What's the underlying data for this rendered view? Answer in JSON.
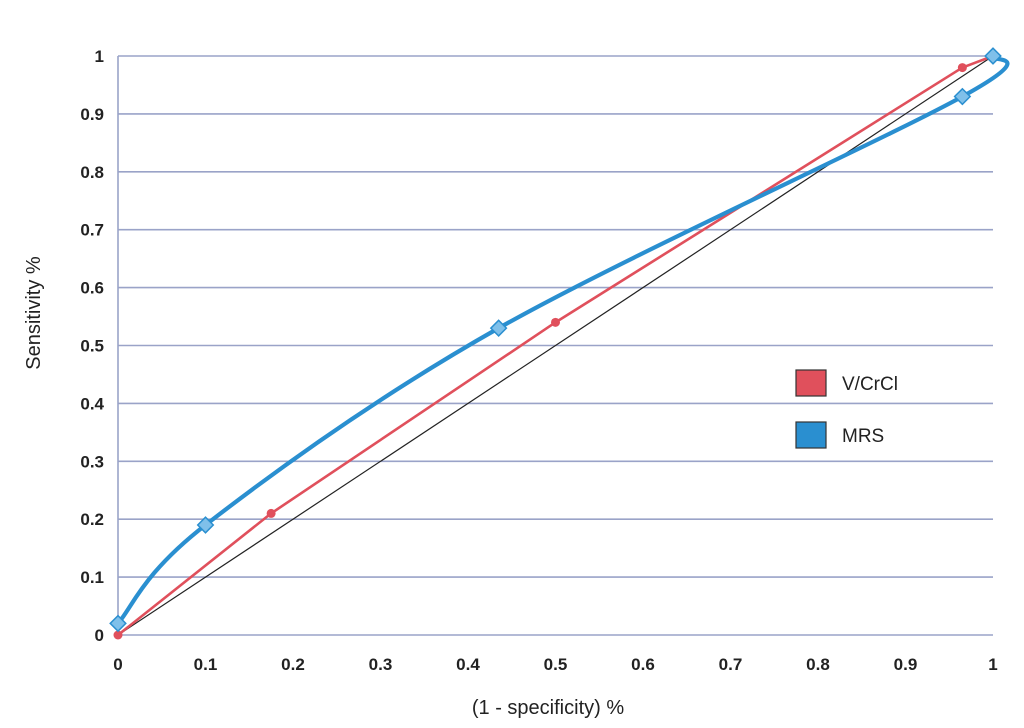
{
  "chart_data": {
    "type": "line",
    "title": "",
    "xlabel": "(1 - specificity) %",
    "ylabel": "Sensitivity %",
    "xlim": [
      0,
      1
    ],
    "ylim": [
      0,
      1
    ],
    "x_ticks": [
      "0",
      "0.1",
      "0.2",
      "0.3",
      "0.4",
      "0.5",
      "0.6",
      "0.7",
      "0.8",
      "0.9",
      "1"
    ],
    "y_ticks": [
      "0",
      "0.1",
      "0.2",
      "0.3",
      "0.4",
      "0.5",
      "0.6",
      "0.7",
      "0.8",
      "0.9",
      "1"
    ],
    "grid": "horizontal",
    "legend_position": "right",
    "series": [
      {
        "name": "V/CrCl",
        "color": "#e0505c",
        "x": [
          0,
          0.175,
          0.5,
          0.965,
          1
        ],
        "y": [
          0,
          0.21,
          0.54,
          0.98,
          1
        ]
      },
      {
        "name": "MRS",
        "color": "#2a8fd0",
        "x": [
          0,
          0.1,
          0.435,
          0.965,
          1
        ],
        "y": [
          0.02,
          0.19,
          0.53,
          0.93,
          1
        ]
      }
    ],
    "reference_line": {
      "color": "#222222",
      "x": [
        0,
        1
      ],
      "y": [
        0,
        1
      ]
    }
  }
}
